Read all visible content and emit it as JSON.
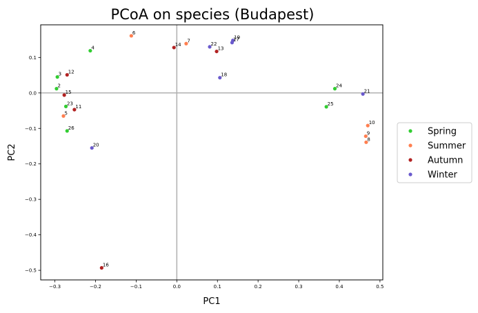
{
  "chart_data": {
    "type": "scatter",
    "title": "PCoA on species (Budapest)",
    "xlabel": "PC1",
    "ylabel": "PC2",
    "xlim": [
      -0.335,
      0.507
    ],
    "ylim": [
      -0.527,
      0.192
    ],
    "xticks": [
      -0.3,
      -0.2,
      -0.1,
      0.0,
      0.1,
      0.2,
      0.3,
      0.4,
      0.5
    ],
    "yticks": [
      0.1,
      0.0,
      -0.1,
      -0.2,
      -0.3,
      -0.4,
      -0.5
    ],
    "xtick_labels": [
      "−0.3",
      "−0.2",
      "−0.1",
      "0.0",
      "0.1",
      "0.2",
      "0.3",
      "0.4",
      "0.5"
    ],
    "ytick_labels": [
      "0.1",
      "0.0",
      "−0.1",
      "−0.2",
      "−0.3",
      "−0.4",
      "−0.5"
    ],
    "reference_lines": {
      "x": 0.0,
      "y": 0.0
    },
    "legend_position": "center-right-outside",
    "grid": false,
    "series": [
      {
        "name": "Spring",
        "color": "#32cd32",
        "points": [
          {
            "label": "4",
            "x": -0.213,
            "y": 0.119
          },
          {
            "label": "3",
            "x": -0.294,
            "y": 0.045
          },
          {
            "label": "2",
            "x": -0.296,
            "y": 0.012
          },
          {
            "label": "23",
            "x": -0.273,
            "y": -0.038
          },
          {
            "label": "26",
            "x": -0.27,
            "y": -0.107
          },
          {
            "label": "24",
            "x": 0.389,
            "y": 0.012
          },
          {
            "label": "25",
            "x": 0.368,
            "y": -0.039
          }
        ]
      },
      {
        "name": "Summer",
        "color": "#ff7f50",
        "points": [
          {
            "label": "6",
            "x": -0.112,
            "y": 0.161
          },
          {
            "label": "7",
            "x": 0.023,
            "y": 0.139
          },
          {
            "label": "5",
            "x": -0.279,
            "y": -0.065
          },
          {
            "label": "10",
            "x": 0.47,
            "y": -0.092
          },
          {
            "label": "9",
            "x": 0.465,
            "y": -0.122
          },
          {
            "label": "8",
            "x": 0.466,
            "y": -0.139
          }
        ]
      },
      {
        "name": "Autumn",
        "color": "#b22222",
        "points": [
          {
            "label": "12",
            "x": -0.27,
            "y": 0.051
          },
          {
            "label": "15",
            "x": -0.277,
            "y": -0.006
          },
          {
            "label": "11",
            "x": -0.252,
            "y": -0.047
          },
          {
            "label": "14",
            "x": -0.007,
            "y": 0.128
          },
          {
            "label": "13",
            "x": 0.098,
            "y": 0.117
          },
          {
            "label": "16",
            "x": -0.185,
            "y": -0.493
          }
        ]
      },
      {
        "name": "Winter",
        "color": "#6a5acd",
        "points": [
          {
            "label": "20",
            "x": -0.209,
            "y": -0.155
          },
          {
            "label": "22",
            "x": 0.081,
            "y": 0.13
          },
          {
            "label": "19",
            "x": 0.138,
            "y": 0.148
          },
          {
            "label": "17",
            "x": 0.136,
            "y": 0.142
          },
          {
            "label": "18",
            "x": 0.106,
            "y": 0.043
          },
          {
            "label": "21",
            "x": 0.458,
            "y": -0.003
          }
        ]
      }
    ]
  }
}
